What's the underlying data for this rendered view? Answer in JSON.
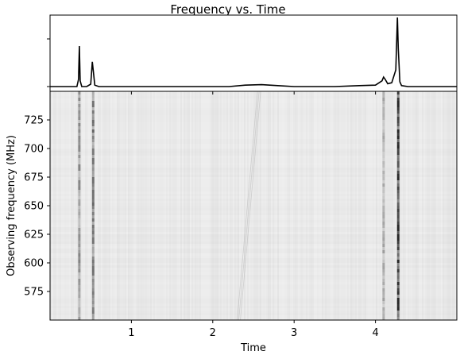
{
  "chart_data": [
    {
      "type": "line",
      "title": "Frequency vs. Time",
      "xlim": [
        0,
        5
      ],
      "ylim": [
        -0.1,
        1.5
      ],
      "grid": false,
      "note_labels": "y tick labels not shown",
      "series": [
        {
          "values_x": [
            0.0,
            0.2,
            0.33,
            0.35,
            0.36,
            0.37,
            0.39,
            0.45,
            0.5,
            0.52,
            0.53,
            0.55,
            0.6,
            1.0,
            1.5,
            2.0,
            2.2,
            2.4,
            2.6,
            2.8,
            3.0,
            3.5,
            3.8,
            4.0,
            4.08,
            4.1,
            4.12,
            4.15,
            4.2,
            4.25,
            4.27,
            4.28,
            4.3,
            4.32,
            4.4,
            4.6,
            5.0
          ],
          "values_y": [
            0.0,
            0.0,
            0.0,
            0.15,
            0.85,
            0.12,
            0.0,
            0.0,
            0.05,
            0.52,
            0.35,
            0.03,
            0.0,
            0.0,
            0.0,
            0.0,
            0.0,
            0.03,
            0.04,
            0.02,
            0.0,
            0.0,
            0.02,
            0.03,
            0.12,
            0.2,
            0.15,
            0.06,
            0.08,
            0.35,
            1.45,
            0.8,
            0.1,
            0.02,
            0.0,
            0.0,
            0.0
          ]
        }
      ]
    },
    {
      "type": "heatmap",
      "xlabel": "Time",
      "ylabel": "Observing frequency (MHz)",
      "xlim": [
        0,
        5
      ],
      "ylim": [
        550,
        750
      ],
      "xticks": [
        1,
        2,
        3,
        4
      ],
      "yticks": [
        575,
        600,
        625,
        650,
        675,
        700,
        725
      ],
      "colormap": "gray_r",
      "vertical_bursts": [
        {
          "time": 0.36,
          "intensity": 0.45
        },
        {
          "time": 0.53,
          "intensity": 0.55
        },
        {
          "time": 4.1,
          "intensity": 0.35
        },
        {
          "time": 4.28,
          "intensity": 0.85
        }
      ],
      "dispersed_sweep": {
        "time_at_750": 2.55,
        "time_at_550": 2.3,
        "intensity": 0.25
      }
    }
  ]
}
